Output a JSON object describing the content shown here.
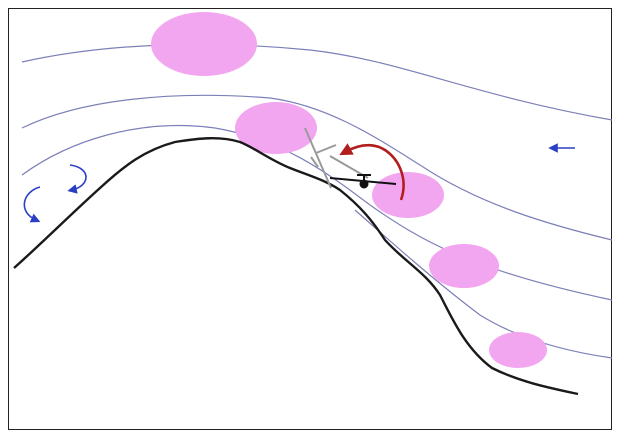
{
  "diagram": {
    "colors": {
      "frame": "#222222",
      "terrain": "#1a1a1a",
      "streamline": "#7d80b8",
      "wind_arrow": "#2a3fc4",
      "eddy_arrow": "#2a3fc4",
      "cloud": "#f3a6f0",
      "rotation_arrow": "#b21e1e",
      "aircraft_current": "#111111",
      "aircraft_previous": "#9a9a9a"
    },
    "elements": {
      "terrain_ridge": "mountain-ridge",
      "streamlines": 4,
      "lenticular_clouds": 5,
      "wind_direction": "right-to-left",
      "lee_eddies": 2,
      "aircraft_states": [
        "previous-gray",
        "current-black"
      ],
      "rotation": "counterclockwise-red-arrow"
    }
  }
}
